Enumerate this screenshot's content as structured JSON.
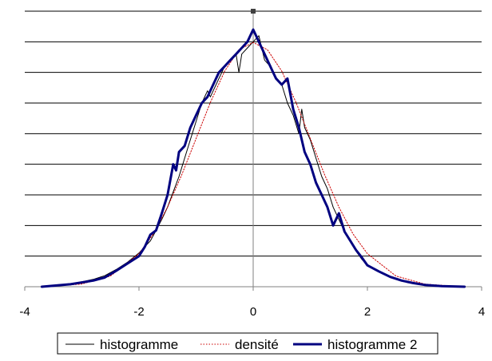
{
  "chart_data": {
    "type": "line",
    "title": "",
    "xlabel": "",
    "ylabel": "",
    "xlim": [
      -4,
      4
    ],
    "ylim": [
      0,
      0.45
    ],
    "x_ticks": [
      -4,
      -2,
      0,
      2,
      4
    ],
    "x_tick_labels": [
      "-4",
      "-2",
      "0",
      "2",
      "4"
    ],
    "y_gridlines": [
      0.05,
      0.1,
      0.15,
      0.2,
      0.25,
      0.3,
      0.35,
      0.4,
      0.45
    ],
    "y_tick_labels_shown": false,
    "grid": "horizontal",
    "legend_position": "bottom",
    "series": [
      {
        "name": "histogramme",
        "color": "#000000",
        "style": "thin-solid",
        "x": [
          -3.7,
          -3.4,
          -3.1,
          -2.8,
          -2.6,
          -2.4,
          -2.2,
          -2.0,
          -1.8,
          -1.7,
          -1.6,
          -1.5,
          -1.4,
          -1.3,
          -1.2,
          -1.1,
          -1.0,
          -0.9,
          -0.8,
          -0.75,
          -0.7,
          -0.6,
          -0.5,
          -0.4,
          -0.3,
          -0.25,
          -0.2,
          -0.1,
          0.0,
          0.1,
          0.15,
          0.2,
          0.3,
          0.4,
          0.5,
          0.6,
          0.7,
          0.8,
          0.85,
          0.9,
          1.0,
          1.1,
          1.2,
          1.3,
          1.4,
          1.5,
          1.6,
          1.7,
          1.8,
          1.9,
          2.0,
          2.2,
          2.4,
          2.6,
          2.8,
          3.0,
          3.3,
          3.7
        ],
        "values": [
          0.0,
          0.003,
          0.006,
          0.012,
          0.018,
          0.028,
          0.04,
          0.055,
          0.075,
          0.092,
          0.11,
          0.13,
          0.155,
          0.18,
          0.21,
          0.24,
          0.27,
          0.3,
          0.32,
          0.31,
          0.32,
          0.34,
          0.36,
          0.37,
          0.38,
          0.35,
          0.38,
          0.39,
          0.4,
          0.41,
          0.39,
          0.37,
          0.36,
          0.34,
          0.33,
          0.3,
          0.28,
          0.25,
          0.29,
          0.26,
          0.24,
          0.21,
          0.18,
          0.16,
          0.13,
          0.11,
          0.09,
          0.075,
          0.058,
          0.045,
          0.035,
          0.024,
          0.016,
          0.01,
          0.006,
          0.003,
          0.001,
          0.0
        ]
      },
      {
        "name": "densité",
        "color": "#cc0000",
        "style": "dotted",
        "x": [
          -3.7,
          -3.5,
          -3.0,
          -2.5,
          -2.0,
          -1.75,
          -1.5,
          -1.25,
          -1.0,
          -0.75,
          -0.5,
          -0.25,
          0.0,
          0.25,
          0.5,
          0.75,
          1.0,
          1.25,
          1.5,
          1.75,
          2.0,
          2.5,
          3.0,
          3.5,
          3.7
        ],
        "values": [
          0.0004,
          0.0009,
          0.0044,
          0.0175,
          0.054,
          0.086,
          0.13,
          0.183,
          0.242,
          0.301,
          0.352,
          0.387,
          0.399,
          0.387,
          0.352,
          0.301,
          0.242,
          0.183,
          0.13,
          0.086,
          0.054,
          0.0175,
          0.0044,
          0.0009,
          0.0004
        ]
      },
      {
        "name": "histogramme 2",
        "color": "#000080",
        "style": "thick-solid",
        "x": [
          -3.7,
          -3.2,
          -2.8,
          -2.6,
          -2.4,
          -2.2,
          -2.0,
          -1.9,
          -1.8,
          -1.7,
          -1.6,
          -1.5,
          -1.4,
          -1.35,
          -1.3,
          -1.2,
          -1.1,
          -1.0,
          -0.9,
          -0.8,
          -0.7,
          -0.6,
          -0.5,
          -0.4,
          -0.3,
          -0.2,
          -0.1,
          0.0,
          0.1,
          0.2,
          0.3,
          0.35,
          0.4,
          0.5,
          0.6,
          0.7,
          0.8,
          0.9,
          1.0,
          1.1,
          1.2,
          1.3,
          1.4,
          1.5,
          1.6,
          1.7,
          1.8,
          1.9,
          2.0,
          2.2,
          2.4,
          2.6,
          2.8,
          3.0,
          3.3,
          3.7
        ],
        "values": [
          0.0,
          0.004,
          0.01,
          0.015,
          0.026,
          0.038,
          0.05,
          0.065,
          0.085,
          0.092,
          0.12,
          0.15,
          0.2,
          0.19,
          0.22,
          0.23,
          0.26,
          0.28,
          0.3,
          0.31,
          0.33,
          0.35,
          0.36,
          0.37,
          0.38,
          0.39,
          0.4,
          0.42,
          0.4,
          0.38,
          0.36,
          0.35,
          0.34,
          0.33,
          0.34,
          0.29,
          0.26,
          0.22,
          0.2,
          0.17,
          0.15,
          0.13,
          0.1,
          0.12,
          0.09,
          0.075,
          0.06,
          0.048,
          0.035,
          0.025,
          0.016,
          0.01,
          0.006,
          0.003,
          0.001,
          0.0
        ]
      }
    ]
  }
}
